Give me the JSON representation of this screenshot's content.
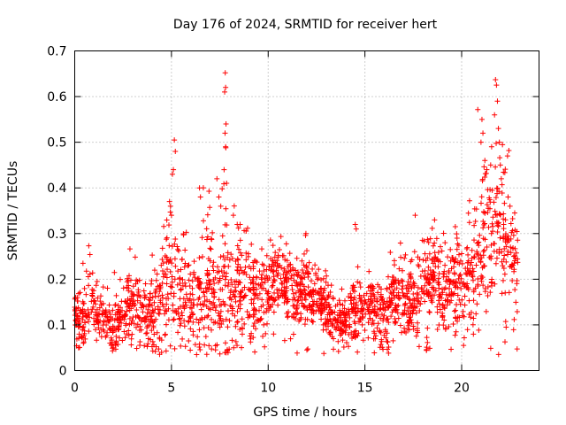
{
  "chart_data": {
    "type": "scatter",
    "title": "Day 176 of 2024, SRMTID for receiver hert",
    "xlabel": "GPS time / hours",
    "ylabel": "SRMTID / TECUs",
    "xlim": [
      0,
      24
    ],
    "ylim": [
      0,
      0.7
    ],
    "xticks": [
      0,
      5,
      10,
      15,
      20
    ],
    "xtick_labels": [
      "0",
      "5",
      "10",
      "15",
      "20"
    ],
    "yticks": [
      0,
      0.1,
      0.2,
      0.3,
      0.4,
      0.5,
      0.6,
      0.7
    ],
    "ytick_labels": [
      "0",
      "0.1",
      "0.2",
      "0.3",
      "0.4",
      "0.5",
      "0.6",
      "0.7"
    ],
    "grid": true,
    "marker": "+",
    "color": "#ff0000",
    "series": [
      {
        "name": "SRMTID",
        "profile": {
          "x": [
            0.0,
            0.5,
            0.8,
            1.0,
            1.5,
            2.0,
            2.5,
            3.0,
            3.5,
            4.0,
            4.5,
            5.0,
            5.5,
            6.0,
            6.5,
            7.0,
            7.5,
            7.8,
            8.0,
            8.5,
            9.0,
            9.5,
            10.0,
            10.5,
            11.0,
            11.5,
            12.0,
            12.5,
            13.0,
            13.5,
            14.0,
            14.5,
            15.0,
            15.5,
            16.0,
            16.5,
            17.0,
            17.5,
            18.0,
            18.5,
            19.0,
            19.5,
            20.0,
            20.5,
            21.0,
            21.5,
            22.0,
            22.5,
            22.9
          ],
          "median": [
            0.11,
            0.12,
            0.17,
            0.13,
            0.11,
            0.1,
            0.13,
            0.14,
            0.12,
            0.13,
            0.15,
            0.2,
            0.17,
            0.14,
            0.16,
            0.18,
            0.17,
            0.22,
            0.16,
            0.18,
            0.17,
            0.15,
            0.18,
            0.2,
            0.19,
            0.17,
            0.17,
            0.16,
            0.14,
            0.1,
            0.11,
            0.13,
            0.14,
            0.14,
            0.12,
            0.16,
            0.14,
            0.15,
            0.19,
            0.2,
            0.17,
            0.19,
            0.18,
            0.22,
            0.27,
            0.3,
            0.32,
            0.28,
            0.2
          ],
          "spread": [
            0.025,
            0.03,
            0.03,
            0.03,
            0.025,
            0.025,
            0.035,
            0.045,
            0.035,
            0.04,
            0.06,
            0.08,
            0.06,
            0.05,
            0.06,
            0.07,
            0.07,
            0.1,
            0.06,
            0.06,
            0.05,
            0.04,
            0.04,
            0.04,
            0.04,
            0.04,
            0.04,
            0.035,
            0.03,
            0.025,
            0.025,
            0.04,
            0.035,
            0.035,
            0.035,
            0.04,
            0.04,
            0.04,
            0.05,
            0.05,
            0.05,
            0.05,
            0.05,
            0.06,
            0.07,
            0.08,
            0.07,
            0.07,
            0.04
          ],
          "count": 2200,
          "seed": 176
        },
        "peaks": [
          {
            "x": 5.15,
            "y": 0.505
          },
          {
            "x": 5.2,
            "y": 0.48
          },
          {
            "x": 5.1,
            "y": 0.44
          },
          {
            "x": 5.05,
            "y": 0.43
          },
          {
            "x": 4.9,
            "y": 0.37
          },
          {
            "x": 4.95,
            "y": 0.36
          },
          {
            "x": 5.0,
            "y": 0.34
          },
          {
            "x": 6.45,
            "y": 0.4
          },
          {
            "x": 6.5,
            "y": 0.38
          },
          {
            "x": 7.35,
            "y": 0.42
          },
          {
            "x": 7.45,
            "y": 0.38
          },
          {
            "x": 7.55,
            "y": 0.36
          },
          {
            "x": 7.78,
            "y": 0.652
          },
          {
            "x": 7.8,
            "y": 0.62
          },
          {
            "x": 7.75,
            "y": 0.61
          },
          {
            "x": 7.82,
            "y": 0.54
          },
          {
            "x": 7.77,
            "y": 0.52
          },
          {
            "x": 7.8,
            "y": 0.49
          },
          {
            "x": 7.72,
            "y": 0.44
          },
          {
            "x": 7.85,
            "y": 0.41
          },
          {
            "x": 8.2,
            "y": 0.34
          },
          {
            "x": 8.4,
            "y": 0.32
          },
          {
            "x": 8.55,
            "y": 0.32
          },
          {
            "x": 11.95,
            "y": 0.3
          },
          {
            "x": 14.5,
            "y": 0.32
          },
          {
            "x": 14.55,
            "y": 0.31
          },
          {
            "x": 17.6,
            "y": 0.34
          },
          {
            "x": 18.6,
            "y": 0.33
          },
          {
            "x": 21.05,
            "y": 0.55
          },
          {
            "x": 21.1,
            "y": 0.52
          },
          {
            "x": 21.0,
            "y": 0.5
          },
          {
            "x": 21.2,
            "y": 0.46
          },
          {
            "x": 21.3,
            "y": 0.44
          },
          {
            "x": 21.5,
            "y": 0.45
          },
          {
            "x": 21.55,
            "y": 0.49
          },
          {
            "x": 21.75,
            "y": 0.637
          },
          {
            "x": 21.8,
            "y": 0.625
          },
          {
            "x": 21.85,
            "y": 0.59
          },
          {
            "x": 21.7,
            "y": 0.56
          },
          {
            "x": 21.9,
            "y": 0.53
          },
          {
            "x": 21.95,
            "y": 0.5
          },
          {
            "x": 22.0,
            "y": 0.45
          },
          {
            "x": 22.05,
            "y": 0.42
          },
          {
            "x": 22.4,
            "y": 0.38
          },
          {
            "x": 22.5,
            "y": 0.36
          }
        ],
        "lows": [
          {
            "x": 6.3,
            "y": 0.035
          },
          {
            "x": 2.0,
            "y": 0.05
          },
          {
            "x": 0.2,
            "y": 0.05
          },
          {
            "x": 12.0,
            "y": 0.045
          },
          {
            "x": 20.1,
            "y": 0.055
          },
          {
            "x": 22.3,
            "y": 0.095
          }
        ]
      }
    ]
  }
}
